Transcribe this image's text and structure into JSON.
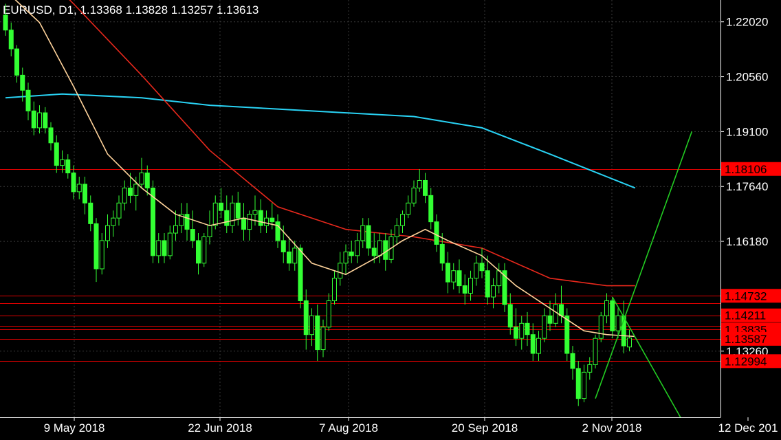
{
  "header": {
    "title": "EURUSD, D1, 1.13368 1.13828 1.13257 1.13613"
  },
  "colors": {
    "background": "#000000",
    "axis": "#ffffff",
    "grid": "#3a3a3a",
    "candle": "#33ff33",
    "level_line": "#e00000",
    "level_label_bg": "#ff0000",
    "ma_fast": "#ffd39b",
    "ma_mid": "#e8281c",
    "ma_slow": "#29d3f5",
    "trend_line": "#22cc22"
  },
  "chart_data": {
    "type": "candlestick",
    "symbol": "EURUSD",
    "timeframe": "D1",
    "ylim": [
      1.115,
      1.226
    ],
    "y_ticks": [
      "1.22020",
      "1.20560",
      "1.19100",
      "1.17640",
      "1.16180",
      "1.13260"
    ],
    "x_ticks": [
      "9 May 2018",
      "22 Jun 2018",
      "7 Aug 2018",
      "20 Sep 2018",
      "2 Nov 2018",
      "12 Dec 201"
    ],
    "level_labels": [
      "1.18106",
      "1.14732",
      "1.14211",
      "1.13835",
      "1.13587",
      "1.12994"
    ],
    "levels": [
      1.18106,
      1.14732,
      1.14532,
      1.14211,
      1.13935,
      1.13835,
      1.13587,
      1.12994
    ],
    "grid": true,
    "candles": [
      [
        1.222,
        1.225,
        1.2165,
        1.218
      ],
      [
        1.218,
        1.22,
        1.211,
        1.213
      ],
      [
        1.213,
        1.214,
        1.204,
        1.206
      ],
      [
        1.206,
        1.208,
        1.199,
        1.202
      ],
      [
        1.202,
        1.204,
        1.194,
        1.1965
      ],
      [
        1.1965,
        1.199,
        1.19,
        1.192
      ],
      [
        1.192,
        1.198,
        1.1905,
        1.196
      ],
      [
        1.196,
        1.1975,
        1.1905,
        1.192
      ],
      [
        1.192,
        1.1935,
        1.186,
        1.188
      ],
      [
        1.188,
        1.19,
        1.18,
        1.182
      ],
      [
        1.182,
        1.186,
        1.18,
        1.1835
      ],
      [
        1.1835,
        1.185,
        1.1785,
        1.18
      ],
      [
        1.18,
        1.182,
        1.173,
        1.175
      ],
      [
        1.175,
        1.179,
        1.173,
        1.177
      ],
      [
        1.177,
        1.179,
        1.169,
        1.172
      ],
      [
        1.172,
        1.174,
        1.1645,
        1.1665
      ],
      [
        1.1665,
        1.168,
        1.151,
        1.1545
      ],
      [
        1.1545,
        1.164,
        1.153,
        1.162
      ],
      [
        1.162,
        1.169,
        1.16,
        1.166
      ],
      [
        1.166,
        1.17,
        1.163,
        1.168
      ],
      [
        1.168,
        1.174,
        1.166,
        1.172
      ],
      [
        1.172,
        1.178,
        1.17,
        1.176
      ],
      [
        1.176,
        1.18,
        1.172,
        1.174
      ],
      [
        1.174,
        1.179,
        1.17,
        1.177
      ],
      [
        1.177,
        1.184,
        1.176,
        1.18
      ],
      [
        1.18,
        1.182,
        1.174,
        1.176
      ],
      [
        1.176,
        1.178,
        1.156,
        1.158
      ],
      [
        1.158,
        1.164,
        1.156,
        1.162
      ],
      [
        1.162,
        1.164,
        1.156,
        1.158
      ],
      [
        1.158,
        1.166,
        1.157,
        1.164
      ],
      [
        1.164,
        1.17,
        1.162,
        1.166
      ],
      [
        1.166,
        1.172,
        1.164,
        1.169
      ],
      [
        1.169,
        1.172,
        1.162,
        1.165
      ],
      [
        1.165,
        1.17,
        1.16,
        1.162
      ],
      [
        1.162,
        1.164,
        1.153,
        1.156
      ],
      [
        1.156,
        1.164,
        1.155,
        1.163
      ],
      [
        1.163,
        1.17,
        1.161,
        1.166
      ],
      [
        1.166,
        1.174,
        1.165,
        1.172
      ],
      [
        1.172,
        1.176,
        1.168,
        1.17
      ],
      [
        1.17,
        1.174,
        1.164,
        1.166
      ],
      [
        1.166,
        1.174,
        1.164,
        1.172
      ],
      [
        1.172,
        1.175,
        1.166,
        1.168
      ],
      [
        1.168,
        1.172,
        1.162,
        1.165
      ],
      [
        1.165,
        1.17,
        1.162,
        1.169
      ],
      [
        1.169,
        1.174,
        1.166,
        1.17
      ],
      [
        1.17,
        1.173,
        1.164,
        1.166
      ],
      [
        1.166,
        1.17,
        1.164,
        1.168
      ],
      [
        1.168,
        1.172,
        1.165,
        1.167
      ],
      [
        1.167,
        1.169,
        1.16,
        1.162
      ],
      [
        1.162,
        1.166,
        1.156,
        1.159
      ],
      [
        1.159,
        1.163,
        1.154,
        1.156
      ],
      [
        1.156,
        1.162,
        1.154,
        1.16
      ],
      [
        1.16,
        1.161,
        1.144,
        1.146
      ],
      [
        1.146,
        1.149,
        1.133,
        1.137
      ],
      [
        1.137,
        1.144,
        1.134,
        1.142
      ],
      [
        1.142,
        1.145,
        1.13,
        1.133
      ],
      [
        1.133,
        1.141,
        1.131,
        1.139
      ],
      [
        1.139,
        1.148,
        1.138,
        1.146
      ],
      [
        1.146,
        1.154,
        1.145,
        1.152
      ],
      [
        1.152,
        1.159,
        1.15,
        1.156
      ],
      [
        1.156,
        1.161,
        1.153,
        1.159
      ],
      [
        1.159,
        1.162,
        1.156,
        1.158
      ],
      [
        1.158,
        1.164,
        1.156,
        1.162
      ],
      [
        1.162,
        1.168,
        1.16,
        1.166
      ],
      [
        1.166,
        1.168,
        1.158,
        1.16
      ],
      [
        1.16,
        1.164,
        1.156,
        1.158
      ],
      [
        1.158,
        1.164,
        1.156,
        1.162
      ],
      [
        1.162,
        1.164,
        1.154,
        1.157
      ],
      [
        1.157,
        1.165,
        1.156,
        1.163
      ],
      [
        1.163,
        1.168,
        1.161,
        1.166
      ],
      [
        1.166,
        1.17,
        1.164,
        1.169
      ],
      [
        1.169,
        1.174,
        1.168,
        1.172
      ],
      [
        1.172,
        1.178,
        1.171,
        1.176
      ],
      [
        1.176,
        1.181,
        1.175,
        1.178
      ],
      [
        1.178,
        1.18,
        1.172,
        1.174
      ],
      [
        1.174,
        1.176,
        1.165,
        1.167
      ],
      [
        1.167,
        1.169,
        1.159,
        1.161
      ],
      [
        1.161,
        1.164,
        1.154,
        1.156
      ],
      [
        1.156,
        1.159,
        1.148,
        1.151
      ],
      [
        1.151,
        1.156,
        1.149,
        1.154
      ],
      [
        1.154,
        1.157,
        1.148,
        1.15
      ],
      [
        1.15,
        1.153,
        1.145,
        1.148
      ],
      [
        1.148,
        1.154,
        1.146,
        1.152
      ],
      [
        1.152,
        1.158,
        1.15,
        1.156
      ],
      [
        1.156,
        1.16,
        1.152,
        1.154
      ],
      [
        1.154,
        1.158,
        1.145,
        1.147
      ],
      [
        1.147,
        1.152,
        1.144,
        1.15
      ],
      [
        1.15,
        1.156,
        1.148,
        1.154
      ],
      [
        1.154,
        1.156,
        1.143,
        1.145
      ],
      [
        1.145,
        1.148,
        1.137,
        1.139
      ],
      [
        1.139,
        1.144,
        1.134,
        1.136
      ],
      [
        1.136,
        1.142,
        1.133,
        1.14
      ],
      [
        1.14,
        1.143,
        1.134,
        1.137
      ],
      [
        1.137,
        1.14,
        1.13,
        1.132
      ],
      [
        1.132,
        1.138,
        1.13,
        1.136
      ],
      [
        1.136,
        1.144,
        1.135,
        1.142
      ],
      [
        1.142,
        1.146,
        1.138,
        1.14
      ],
      [
        1.14,
        1.148,
        1.139,
        1.145
      ],
      [
        1.145,
        1.15,
        1.14,
        1.142
      ],
      [
        1.142,
        1.144,
        1.13,
        1.132
      ],
      [
        1.132,
        1.134,
        1.125,
        1.128
      ],
      [
        1.128,
        1.13,
        1.118,
        1.12
      ],
      [
        1.12,
        1.129,
        1.119,
        1.127
      ],
      [
        1.127,
        1.131,
        1.125,
        1.129
      ],
      [
        1.129,
        1.137,
        1.128,
        1.136
      ],
      [
        1.136,
        1.143,
        1.135,
        1.142
      ],
      [
        1.142,
        1.148,
        1.14,
        1.146
      ],
      [
        1.146,
        1.147,
        1.136,
        1.138
      ],
      [
        1.138,
        1.144,
        1.136,
        1.142
      ],
      [
        1.142,
        1.146,
        1.132,
        1.134
      ],
      [
        1.1337,
        1.1383,
        1.1326,
        1.1361
      ]
    ],
    "ma_fast": [
      [
        0,
        1.2285
      ],
      [
        6,
        1.22
      ],
      [
        12,
        1.203
      ],
      [
        18,
        1.185
      ],
      [
        24,
        1.176
      ],
      [
        30,
        1.169
      ],
      [
        36,
        1.166
      ],
      [
        42,
        1.168
      ],
      [
        48,
        1.166
      ],
      [
        54,
        1.156
      ],
      [
        60,
        1.153
      ],
      [
        66,
        1.158
      ],
      [
        70,
        1.162
      ],
      [
        74,
        1.165
      ],
      [
        78,
        1.162
      ],
      [
        84,
        1.158
      ],
      [
        90,
        1.15
      ],
      [
        96,
        1.144
      ],
      [
        102,
        1.138
      ],
      [
        106,
        1.137
      ],
      [
        111,
        1.1365
      ]
    ],
    "ma_mid": [
      [
        0,
        1.243
      ],
      [
        12,
        1.225
      ],
      [
        24,
        1.206
      ],
      [
        36,
        1.186
      ],
      [
        48,
        1.171
      ],
      [
        60,
        1.165
      ],
      [
        72,
        1.163
      ],
      [
        84,
        1.16
      ],
      [
        96,
        1.152
      ],
      [
        106,
        1.15
      ],
      [
        111,
        1.15
      ]
    ],
    "ma_slow": [
      [
        0,
        1.2
      ],
      [
        10,
        1.201
      ],
      [
        24,
        1.2
      ],
      [
        36,
        1.198
      ],
      [
        48,
        1.197
      ],
      [
        60,
        1.196
      ],
      [
        72,
        1.195
      ],
      [
        84,
        1.192
      ],
      [
        96,
        1.185
      ],
      [
        106,
        1.179
      ],
      [
        111,
        1.176
      ]
    ],
    "trend_up": [
      [
        104,
        1.12
      ],
      [
        121,
        1.191
      ]
    ],
    "trend_down": [
      [
        107,
        1.147
      ],
      [
        119,
        1.115
      ]
    ]
  }
}
